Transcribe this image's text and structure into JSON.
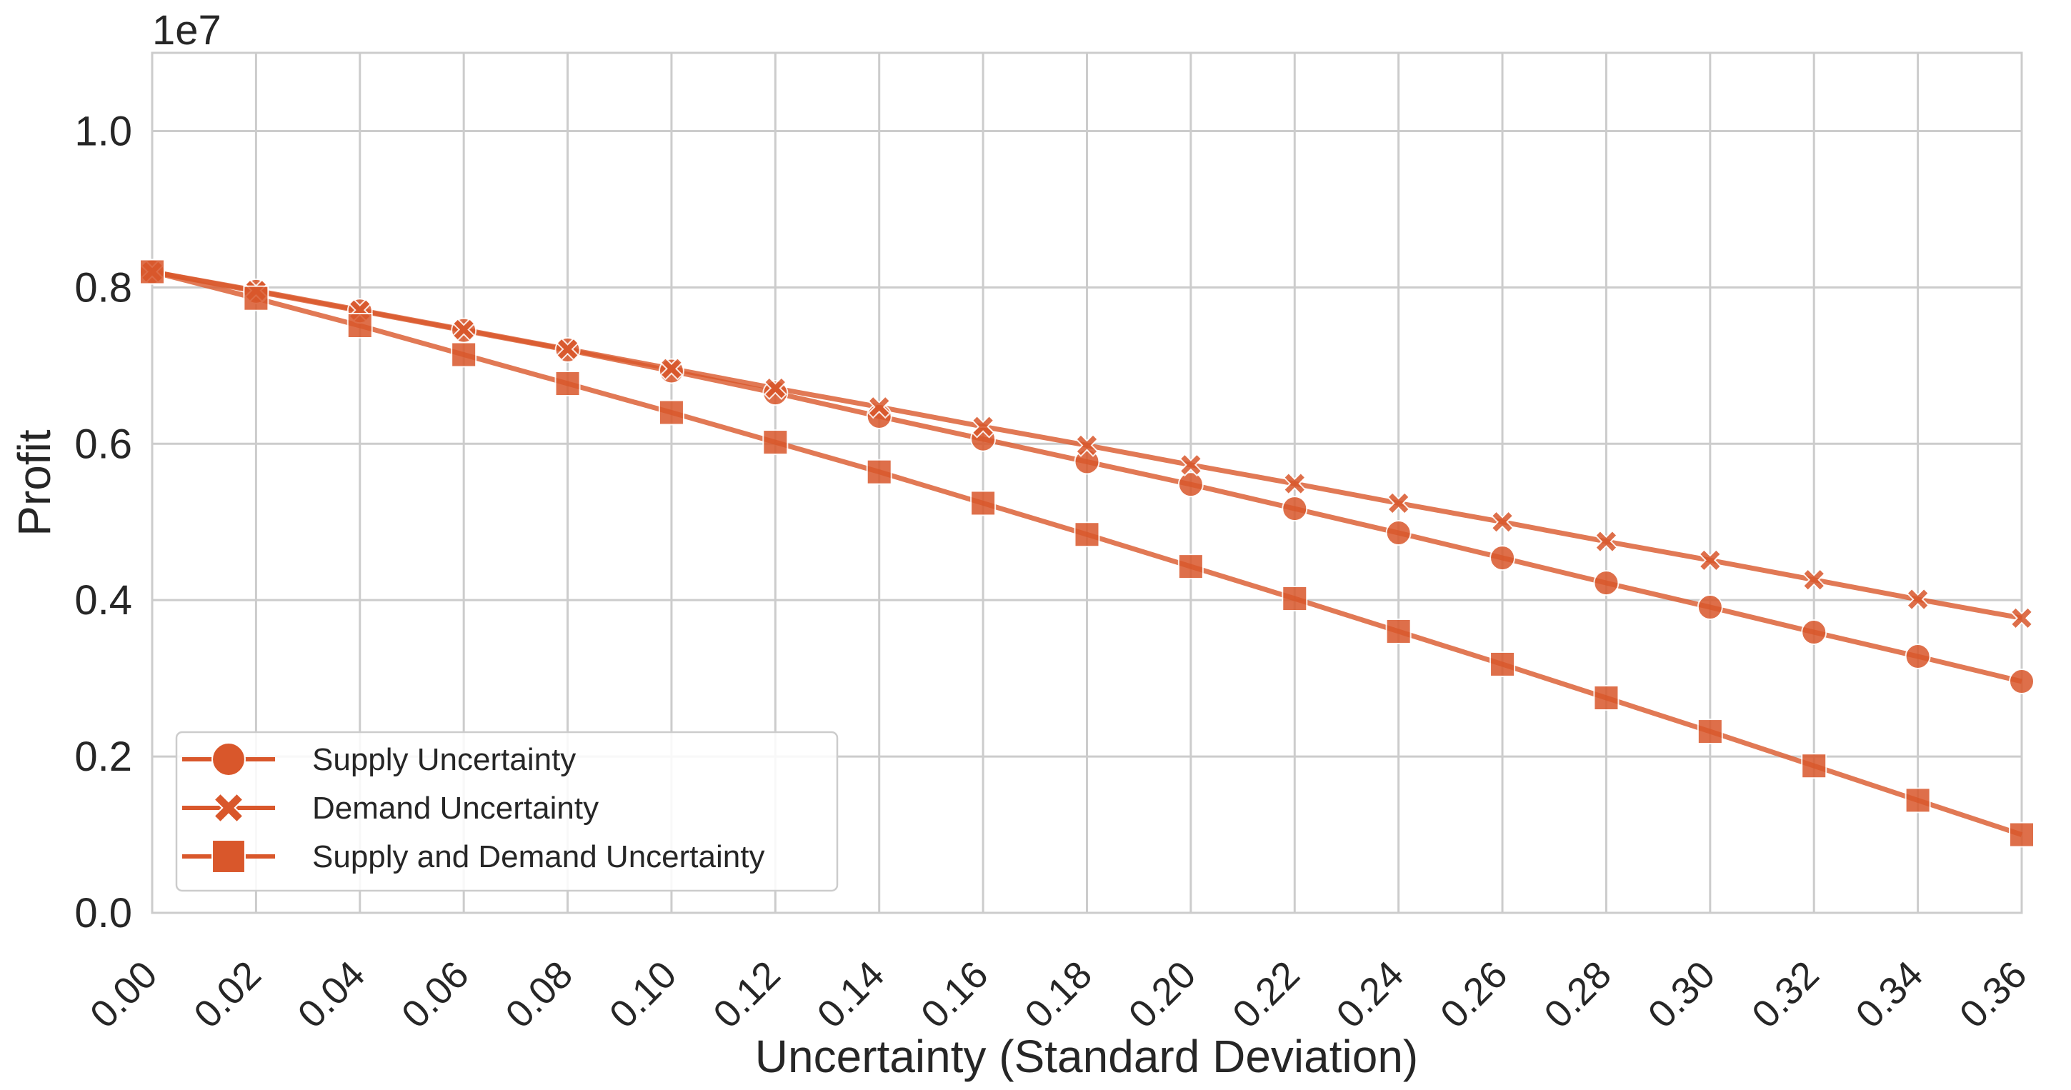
{
  "chart_data": {
    "type": "line",
    "title": "",
    "xlabel": "Uncertainty (Standard Deviation)",
    "ylabel": "Profit",
    "y_offset_label": "1e7",
    "xlim": [
      0.0,
      0.36
    ],
    "ylim": [
      0.0,
      1.1
    ],
    "x_ticks": [
      "0.00",
      "0.02",
      "0.04",
      "0.06",
      "0.08",
      "0.10",
      "0.12",
      "0.14",
      "0.16",
      "0.18",
      "0.20",
      "0.22",
      "0.24",
      "0.26",
      "0.28",
      "0.30",
      "0.32",
      "0.34",
      "0.36"
    ],
    "y_ticks": [
      "0.0",
      "0.2",
      "0.4",
      "0.6",
      "0.8",
      "1.0"
    ],
    "grid": true,
    "legend_position": "bottom-left",
    "color": "#d9572b",
    "x": [
      0.0,
      0.02,
      0.04,
      0.06,
      0.08,
      0.1,
      0.12,
      0.14,
      0.16,
      0.18,
      0.2,
      0.22,
      0.24,
      0.26,
      0.28,
      0.3,
      0.32,
      0.34,
      0.36
    ],
    "series": [
      {
        "name": "Supply Uncertainty",
        "marker": "circle",
        "values": [
          0.82,
          0.795,
          0.77,
          0.745,
          0.72,
          0.693,
          0.665,
          0.635,
          0.606,
          0.577,
          0.548,
          0.517,
          0.486,
          0.454,
          0.422,
          0.391,
          0.359,
          0.328,
          0.296
        ]
      },
      {
        "name": "Demand Uncertainty",
        "marker": "x",
        "values": [
          0.82,
          0.796,
          0.771,
          0.746,
          0.721,
          0.696,
          0.671,
          0.647,
          0.622,
          0.598,
          0.573,
          0.549,
          0.524,
          0.5,
          0.475,
          0.451,
          0.426,
          0.401,
          0.377
        ]
      },
      {
        "name": "Supply and Demand Uncertainty",
        "marker": "square",
        "values": [
          0.82,
          0.786,
          0.751,
          0.714,
          0.677,
          0.64,
          0.602,
          0.564,
          0.524,
          0.484,
          0.443,
          0.402,
          0.36,
          0.318,
          0.275,
          0.232,
          0.188,
          0.144,
          0.1
        ]
      }
    ]
  }
}
